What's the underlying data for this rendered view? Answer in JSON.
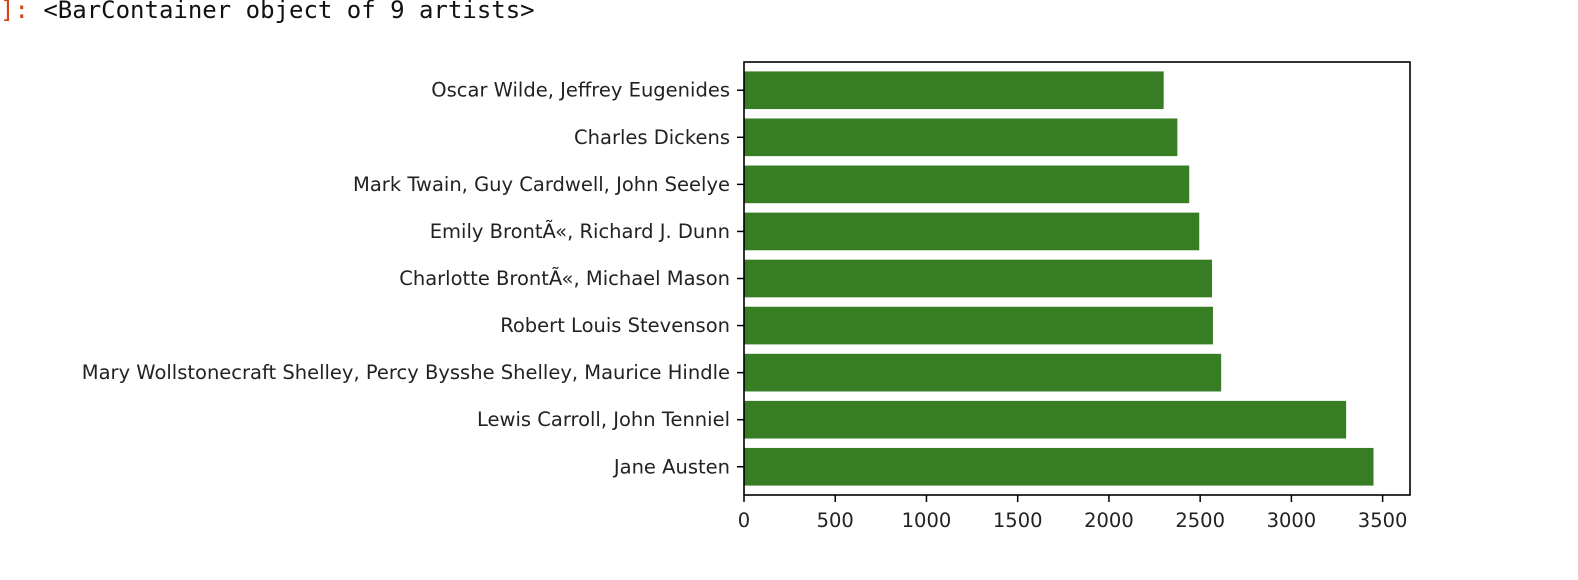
{
  "output_cell": {
    "prompt_suffix": "]:",
    "text": "<BarContainer object of 9 artists>"
  },
  "colors": {
    "bar": "#367d23",
    "axis": "#000000",
    "text": "#222222",
    "prompt": "#d84315"
  },
  "chart_data": {
    "type": "bar",
    "orientation": "horizontal",
    "title": "",
    "xlabel": "",
    "ylabel": "",
    "categories": [
      "Jane Austen",
      "Lewis Carroll, John Tenniel",
      "Mary Wollstonecraft Shelley, Percy Bysshe Shelley, Maurice Hindle",
      "Robert Louis Stevenson",
      "Charlotte BrontÃ«, Michael Mason",
      "Emily BrontÃ«, Richard J. Dunn",
      "Mark Twain, Guy Cardwell, John Seelye",
      "Charles Dickens",
      "Oscar Wilde, Jeffrey Eugenides"
    ],
    "values": [
      3450,
      3300,
      2615,
      2570,
      2565,
      2495,
      2440,
      2375,
      2300
    ],
    "xlim": [
      0,
      3650
    ],
    "xticks": [
      0,
      500,
      1000,
      1500,
      2000,
      2500,
      3000,
      3500
    ],
    "grid": false,
    "legend": "none"
  }
}
